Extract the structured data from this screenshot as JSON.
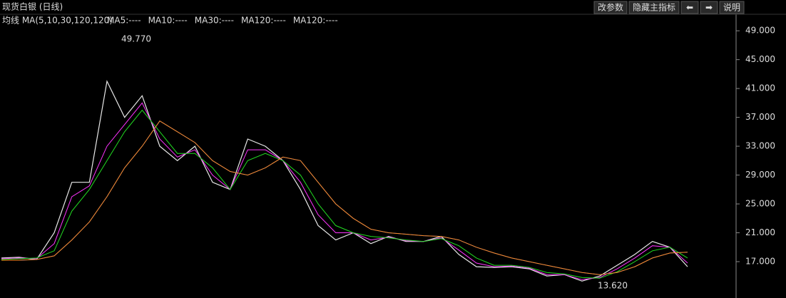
{
  "header": {
    "title": "现货白银 (日线)",
    "buttons": [
      "改参数",
      "隐藏主指标",
      "⬅",
      "➡",
      "说明"
    ]
  },
  "chart_data": {
    "type": "line",
    "subtitle": "均线 MA(5,10,30,120,120)",
    "annotations": [
      "49.770",
      "13.620"
    ],
    "ylim": [
      12.75,
      50.5
    ],
    "yticks": [
      {
        "value": 17,
        "label": "17.000"
      },
      {
        "value": 21,
        "label": "21.000"
      },
      {
        "value": 25,
        "label": "25.000"
      },
      {
        "value": 29,
        "label": "29.000"
      },
      {
        "value": 33,
        "label": "33.000"
      },
      {
        "value": 37,
        "label": "37.000"
      },
      {
        "value": 41,
        "label": "41.000"
      },
      {
        "value": 45,
        "label": "45.000"
      },
      {
        "value": 49,
        "label": "49.000"
      }
    ],
    "grid": false,
    "series": [
      {
        "name": "MA5:----",
        "color": "#e8e8e8",
        "values": [
          17.5,
          17.6,
          17.3,
          21,
          28,
          28,
          42,
          37,
          40,
          33,
          31,
          33,
          28,
          27,
          34,
          33,
          31,
          27,
          22,
          20,
          21,
          19.5,
          20.5,
          19.8,
          19.8,
          20.5,
          18,
          16.3,
          16.2,
          16.3,
          16,
          15,
          15.2,
          14.3,
          15,
          16.5,
          18,
          19.8,
          19,
          16.3
        ]
      },
      {
        "name": "MA10:----",
        "color": "#ff33ff",
        "values": [
          17.4,
          17.5,
          17.4,
          19.5,
          26,
          27.5,
          33,
          36,
          39,
          34,
          31.5,
          32.5,
          29,
          27,
          32.5,
          32.5,
          31,
          28,
          23.5,
          21,
          21,
          20,
          20.4,
          19.9,
          19.8,
          20.3,
          18.6,
          16.8,
          16.3,
          16.4,
          16.1,
          15.2,
          15.2,
          14.5,
          14.8,
          16,
          17.5,
          19.2,
          19,
          16.8
        ]
      },
      {
        "name": "MA30:----",
        "color": "#22dd22",
        "values": [
          17.3,
          17.4,
          17.5,
          18.5,
          24,
          27,
          31,
          35,
          38,
          35,
          32,
          32,
          30,
          27,
          31,
          32,
          31,
          29,
          25,
          22,
          21,
          20.5,
          20.3,
          20,
          19.8,
          20.2,
          19.2,
          17.5,
          16.5,
          16.5,
          16.2,
          15.5,
          15.3,
          14.8,
          14.7,
          15.6,
          17,
          18.5,
          19,
          17.5
        ]
      },
      {
        "name": "MA120:----",
        "color": "#2244ff",
        "values": [
          17.2,
          17.2,
          17.3,
          17.8,
          20,
          22.5,
          26,
          30,
          33,
          36.5,
          35,
          33.5,
          31,
          29.5,
          29,
          30,
          31.5,
          31,
          28,
          25,
          23,
          21.5,
          21,
          20.8,
          20.6,
          20.5,
          20,
          19,
          18.2,
          17.5,
          17,
          16.5,
          16,
          15.5,
          15.2,
          15.5,
          16.3,
          17.5,
          18.2,
          18.3
        ]
      },
      {
        "name": "MA120:----",
        "color": "#ff8c1a",
        "values": [
          17.2,
          17.2,
          17.3,
          17.8,
          20,
          22.5,
          26,
          30,
          33,
          36.5,
          35,
          33.5,
          31,
          29.5,
          29,
          30,
          31.5,
          31,
          28,
          25,
          23,
          21.5,
          21,
          20.8,
          20.6,
          20.5,
          20,
          19,
          18.2,
          17.5,
          17,
          16.5,
          16,
          15.5,
          15.2,
          15.5,
          16.3,
          17.5,
          18.2,
          18.3
        ]
      }
    ]
  }
}
